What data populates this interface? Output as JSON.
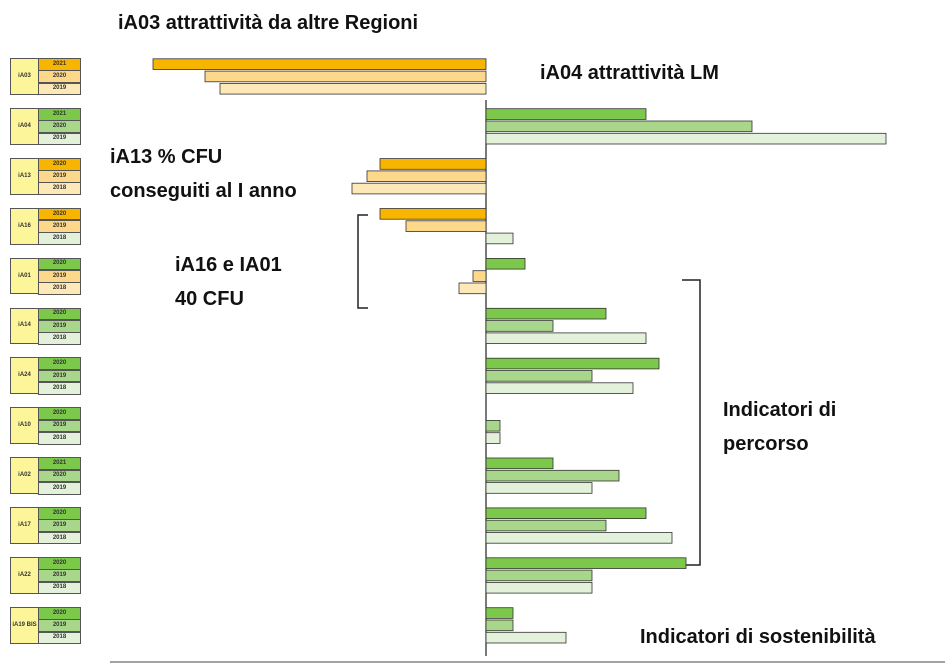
{
  "chart_data": {
    "type": "bar",
    "orientation": "horizontal",
    "xlim": [
      -37.1,
      45.9
    ],
    "colors": {
      "negative": [
        "#f7b500",
        "#fdd88a",
        "#fde9b8"
      ],
      "positive": [
        "#7cc84a",
        "#a8d68a",
        "#e3f1da"
      ]
    },
    "groups": [
      {
        "name": "iA03",
        "years": [
          "2021",
          "2020",
          "2019"
        ],
        "values": [
          -33.3,
          -28.1,
          -26.6
        ]
      },
      {
        "name": "iA04",
        "years": [
          "2021",
          "2020",
          "2019"
        ],
        "values": [
          16,
          26.6,
          40
        ]
      },
      {
        "name": "iA13",
        "years": [
          "2020",
          "2019",
          "2018"
        ],
        "values": [
          -10.6,
          -11.9,
          -13.4
        ]
      },
      {
        "name": "iA16",
        "years": [
          "2020",
          "2019",
          "2018"
        ],
        "values": [
          -10.6,
          -8,
          2.7
        ]
      },
      {
        "name": "iA01",
        "years": [
          "2020",
          "2019",
          "2018"
        ],
        "values": [
          3.9,
          -1.3,
          -2.7
        ]
      },
      {
        "name": "iA14",
        "years": [
          "2020",
          "2019",
          "2018"
        ],
        "values": [
          12,
          6.7,
          16
        ]
      },
      {
        "name": "iA24",
        "years": [
          "2020",
          "2019",
          "2018"
        ],
        "values": [
          17.3,
          10.6,
          14.7
        ]
      },
      {
        "name": "iA10",
        "years": [
          "2020",
          "2019",
          "2018"
        ],
        "values": [
          0,
          1.4,
          1.4
        ]
      },
      {
        "name": "iA02",
        "years": [
          "2021",
          "2020",
          "2019"
        ],
        "values": [
          6.7,
          13.3,
          10.6
        ]
      },
      {
        "name": "iA17",
        "years": [
          "2020",
          "2019",
          "2018"
        ],
        "values": [
          16,
          12,
          18.6
        ]
      },
      {
        "name": "iA22",
        "years": [
          "2020",
          "2019",
          "2018"
        ],
        "values": [
          20,
          10.6,
          10.6
        ]
      },
      {
        "name": "iA19 BIS",
        "years": [
          "2020",
          "2019",
          "2018"
        ],
        "values": [
          2.7,
          2.7,
          8
        ]
      }
    ],
    "annotations": [
      {
        "lines": [
          "iA03 attrattività da altre Regioni"
        ]
      },
      {
        "lines": [
          "iA04 attrattività LM"
        ]
      },
      {
        "lines": [
          "iA13 % CFU",
          "conseguiti al I anno"
        ]
      },
      {
        "lines": [
          "iA16 e IA01",
          "40 CFU"
        ]
      },
      {
        "lines": [
          "Indicatori di",
          "percorso"
        ]
      },
      {
        "lines": [
          "Indicatori di sostenibilità"
        ]
      }
    ]
  }
}
